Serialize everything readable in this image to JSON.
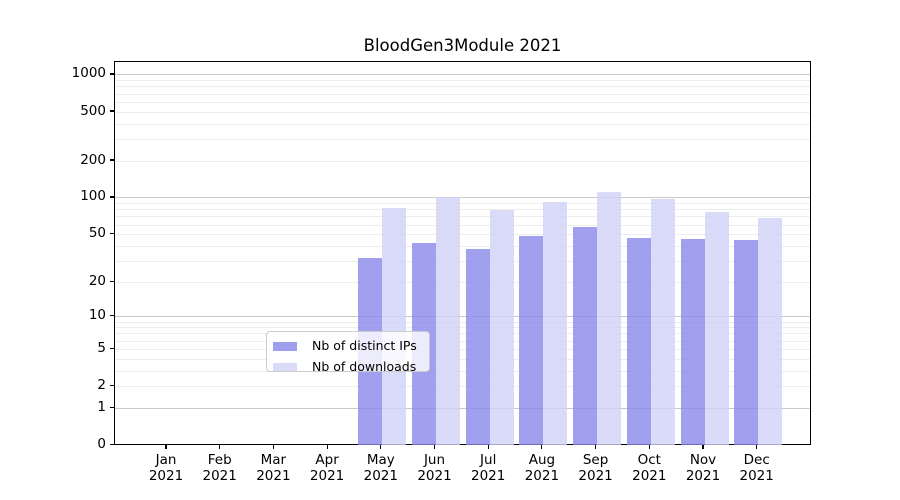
{
  "title": "BloodGen3Module 2021",
  "legend": {
    "items": [
      {
        "label": "Nb of distinct IPs",
        "color": "#9f9fef"
      },
      {
        "label": "Nb of downloads",
        "color": "#dadaf9"
      }
    ]
  },
  "chart_data": {
    "type": "bar",
    "title": "BloodGen3Module 2021",
    "categories": [
      "Jan 2021",
      "Feb 2021",
      "Mar 2021",
      "Apr 2021",
      "May 2021",
      "Jun 2021",
      "Jul 2021",
      "Aug 2021",
      "Sep 2021",
      "Oct 2021",
      "Nov 2021",
      "Dec 2021"
    ],
    "series": [
      {
        "name": "Nb of distinct IPs",
        "color": "#9f9fef",
        "fill": "rgba(136,136,235,0.8)",
        "values": [
          0,
          0,
          0,
          0,
          32,
          43,
          38,
          49,
          58,
          47,
          46,
          45
        ]
      },
      {
        "name": "Nb of downloads",
        "color": "#dadaf9",
        "fill": "rgba(209,209,247,0.8)",
        "values": [
          0,
          0,
          0,
          0,
          82,
          102,
          80,
          92,
          112,
          98,
          77,
          68
        ]
      }
    ],
    "xlabel": "",
    "ylabel": "",
    "yscale": "symlog (position proportional to log10(1+value))",
    "yticks": [
      0,
      1,
      2,
      5,
      10,
      20,
      50,
      100,
      200,
      500,
      1000
    ],
    "ylim": [
      0,
      1285
    ],
    "grid": "horizontal major + minor log gridlines",
    "legend_position": "inside bottom-center"
  },
  "colors": {
    "grid_major": "#c9c9c9",
    "grid_minor": "#ededed",
    "axis": "#000000",
    "legend_border": "#cccccc",
    "background": "#ffffff"
  }
}
